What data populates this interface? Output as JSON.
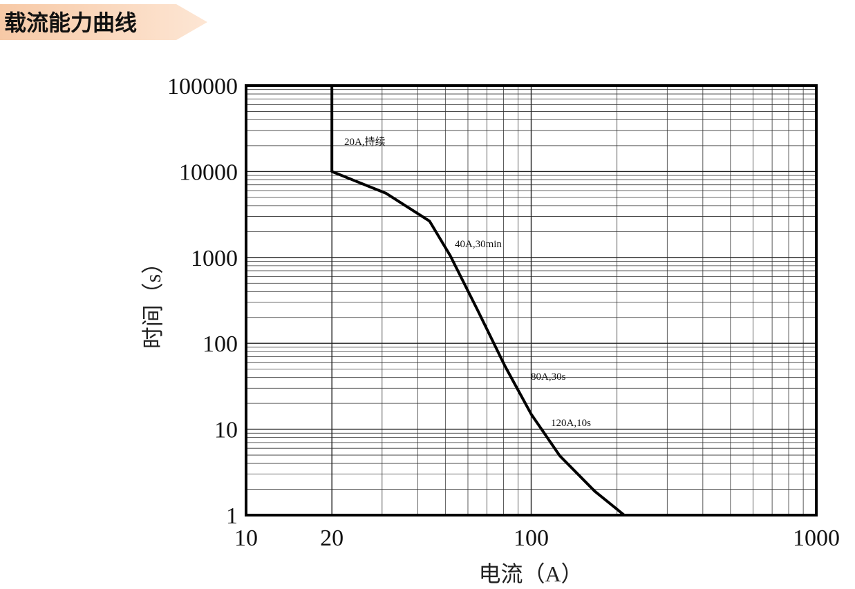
{
  "chart_data": {
    "type": "line",
    "title": "载流能力曲线",
    "xlabel": "电流（A）",
    "ylabel": "时间（s）",
    "log_x": true,
    "log_y": true,
    "grid": true,
    "xlim": [
      10,
      1000
    ],
    "ylim": [
      1,
      100000
    ],
    "xticks": [
      10,
      20,
      100,
      1000
    ],
    "yticks": [
      1,
      10,
      100,
      1000,
      10000,
      100000
    ],
    "xminorticks": [
      20,
      30,
      40,
      50,
      60,
      70,
      80,
      90,
      200,
      300,
      400,
      500,
      600,
      700,
      800,
      900
    ],
    "yminorticks": [
      2,
      3,
      4,
      5,
      6,
      7,
      8,
      9,
      20,
      30,
      40,
      50,
      60,
      70,
      80,
      90,
      200,
      300,
      400,
      500,
      600,
      700,
      800,
      900,
      2000,
      3000,
      4000,
      5000,
      6000,
      7000,
      8000,
      9000,
      20000,
      30000,
      40000,
      50000,
      60000,
      70000,
      80000,
      90000
    ],
    "series": [
      {
        "color": "#000000",
        "x": [
          20,
          20,
          31,
          44,
          52,
          65,
          81,
          100,
          126,
          167,
          212
        ],
        "values": [
          100000,
          10000,
          5570,
          2650,
          1050,
          240,
          54,
          15,
          4.9,
          1.9,
          1
        ]
      }
    ],
    "annotations": [
      "20A,持续",
      "40A,30min",
      "80A,30s",
      "120A,10s"
    ]
  }
}
